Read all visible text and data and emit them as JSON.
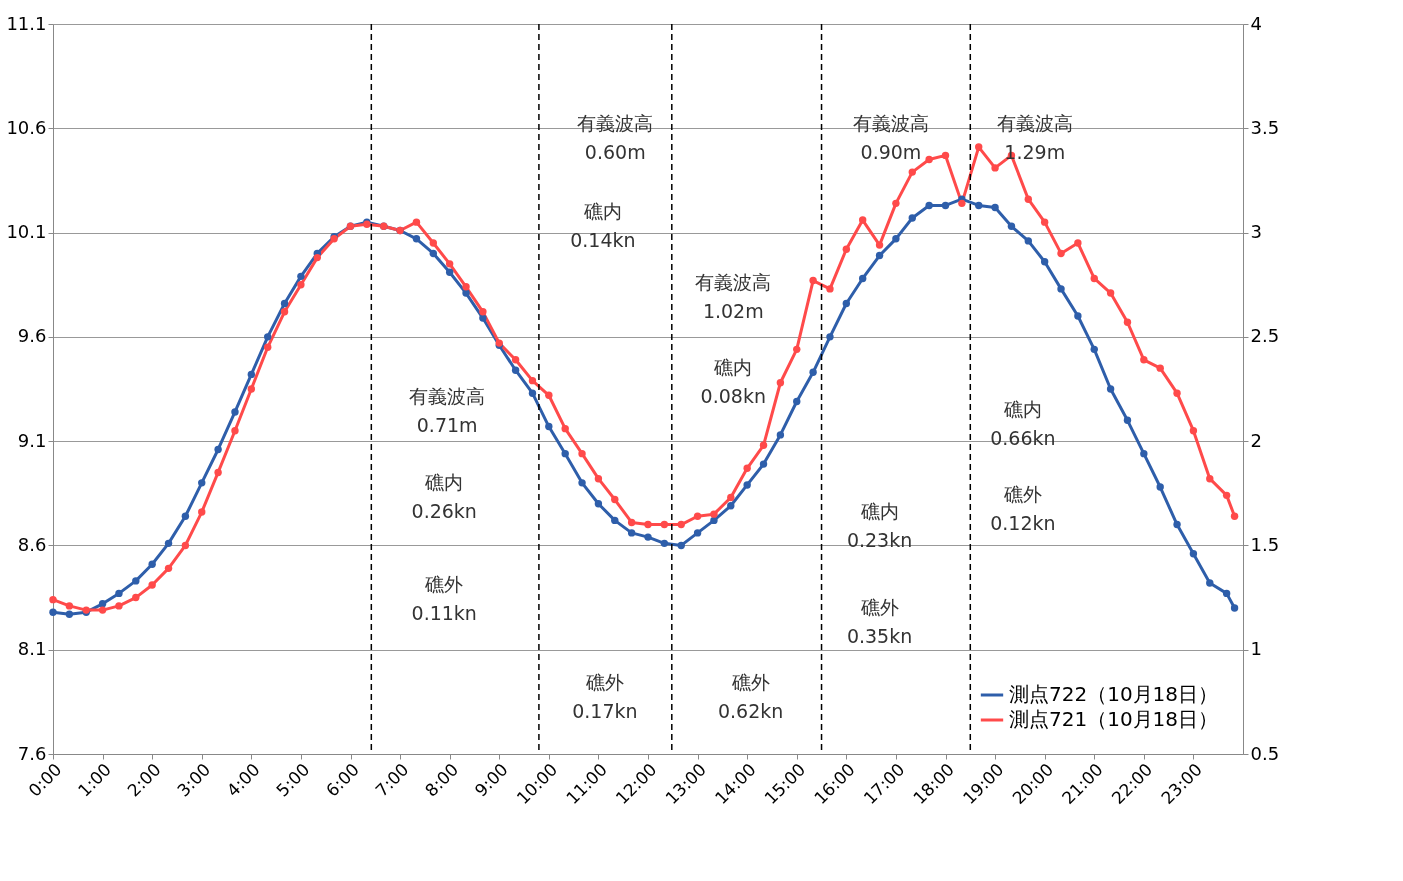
{
  "chart_data": {
    "type": "line",
    "x": [
      0,
      0.33,
      0.67,
      1,
      1.33,
      1.67,
      2,
      2.33,
      2.67,
      3,
      3.33,
      3.67,
      4,
      4.33,
      4.67,
      5,
      5.33,
      5.67,
      6,
      6.33,
      6.67,
      7,
      7.33,
      7.67,
      8,
      8.33,
      8.67,
      9,
      9.33,
      9.67,
      10,
      10.33,
      10.67,
      11,
      11.33,
      11.67,
      12,
      12.33,
      12.67,
      13,
      13.33,
      13.67,
      14,
      14.33,
      14.67,
      15,
      15.33,
      15.67,
      16,
      16.33,
      16.67,
      17,
      17.33,
      17.67,
      18,
      18.33,
      18.67,
      19,
      19.33,
      19.67,
      20,
      20.33,
      20.67,
      21,
      21.33,
      21.67,
      22,
      22.33,
      22.67,
      23,
      23.33,
      23.67,
      23.83
    ],
    "series": [
      {
        "name": "測点722（10月18日）",
        "color": "#2e5eaa",
        "values": [
          8.28,
          8.27,
          8.28,
          8.32,
          8.37,
          8.43,
          8.51,
          8.61,
          8.74,
          8.9,
          9.06,
          9.24,
          9.42,
          9.6,
          9.76,
          9.89,
          10.0,
          10.08,
          10.13,
          10.15,
          10.13,
          10.11,
          10.07,
          10.0,
          9.91,
          9.81,
          9.69,
          9.56,
          9.44,
          9.33,
          9.17,
          9.04,
          8.9,
          8.8,
          8.72,
          8.66,
          8.64,
          8.61,
          8.6,
          8.66,
          8.72,
          8.79,
          8.89,
          8.99,
          9.13,
          9.29,
          9.43,
          9.6,
          9.76,
          9.88,
          9.99,
          10.07,
          10.17,
          10.23,
          10.23,
          10.26,
          10.23,
          10.22,
          10.13,
          10.06,
          9.96,
          9.83,
          9.7,
          9.54,
          9.35,
          9.2,
          9.04,
          8.88,
          8.7,
          8.56,
          8.42,
          8.37,
          8.3
        ]
      },
      {
        "name": "測点721（10月18日）",
        "color": "#ff4a4a",
        "values": [
          8.34,
          8.31,
          8.29,
          8.29,
          8.31,
          8.35,
          8.41,
          8.49,
          8.6,
          8.76,
          8.95,
          9.15,
          9.35,
          9.55,
          9.72,
          9.85,
          9.98,
          10.07,
          10.13,
          10.14,
          10.13,
          10.11,
          10.15,
          10.05,
          9.95,
          9.84,
          9.72,
          9.57,
          9.49,
          9.39,
          9.32,
          9.16,
          9.04,
          8.92,
          8.82,
          8.71,
          8.7,
          8.7,
          8.7,
          8.74,
          8.75,
          8.83,
          8.97,
          9.08,
          9.38,
          9.54,
          9.87,
          9.83,
          10.02,
          10.16,
          10.04,
          10.24,
          10.39,
          10.45,
          10.47,
          10.24,
          10.51,
          10.41,
          10.47,
          10.26,
          10.15,
          10.0,
          10.05,
          9.88,
          9.81,
          9.67,
          9.49,
          9.45,
          9.33,
          9.15,
          8.92,
          8.84,
          8.74
        ]
      }
    ],
    "xlim": [
      0,
      24
    ],
    "xticks": [
      {
        "value": 0,
        "label": "0:00"
      },
      {
        "value": 1,
        "label": "1:00"
      },
      {
        "value": 2,
        "label": "2:00"
      },
      {
        "value": 3,
        "label": "3:00"
      },
      {
        "value": 4,
        "label": "4:00"
      },
      {
        "value": 5,
        "label": "5:00"
      },
      {
        "value": 6,
        "label": "6:00"
      },
      {
        "value": 7,
        "label": "7:00"
      },
      {
        "value": 8,
        "label": "8:00"
      },
      {
        "value": 9,
        "label": "9:00"
      },
      {
        "value": 10,
        "label": "10:00"
      },
      {
        "value": 11,
        "label": "11:00"
      },
      {
        "value": 12,
        "label": "12:00"
      },
      {
        "value": 13,
        "label": "13:00"
      },
      {
        "value": 14,
        "label": "14:00"
      },
      {
        "value": 15,
        "label": "15:00"
      },
      {
        "value": 16,
        "label": "16:00"
      },
      {
        "value": 17,
        "label": "17:00"
      },
      {
        "value": 18,
        "label": "18:00"
      },
      {
        "value": 19,
        "label": "19:00"
      },
      {
        "value": 20,
        "label": "20:00"
      },
      {
        "value": 21,
        "label": "21:00"
      },
      {
        "value": 22,
        "label": "22:00"
      },
      {
        "value": 23,
        "label": "23:00"
      }
    ],
    "ylim": [
      7.6,
      11.1
    ],
    "yticks": [
      7.6,
      8.1,
      8.6,
      9.1,
      9.6,
      10.1,
      10.6,
      11.1
    ],
    "y2lim": [
      0.5,
      4
    ],
    "y2ticks": [
      0.5,
      1,
      1.5,
      2,
      2.5,
      3,
      3.5,
      4
    ],
    "ref_lines": [
      {
        "axis": "x",
        "value": 6.42,
        "label": null,
        "color": "#000000",
        "line_style": "dashed"
      },
      {
        "axis": "x",
        "value": 9.8,
        "label": null,
        "color": "#000000",
        "line_style": "dashed"
      },
      {
        "axis": "x",
        "value": 12.48,
        "label": null,
        "color": "#000000",
        "line_style": "dashed"
      },
      {
        "axis": "x",
        "value": 15.5,
        "label": null,
        "color": "#000000",
        "line_style": "dashed"
      },
      {
        "axis": "x",
        "value": 18.5,
        "label": null,
        "color": "#000000",
        "line_style": "dashed"
      }
    ],
    "annotations": [
      "有義波高\n0.60m",
      "有義波高\n0.90m",
      "有義波高\n1.29m",
      "礁内\n0.14kn",
      "有義波高\n1.02m",
      "礁内\n0.08kn",
      "有義波高\n0.71m",
      "礁内\n0.26kn",
      "礁外\n0.11kn",
      "礁外\n0.17kn",
      "礁外\n0.62kn",
      "礁内\n0.23kn",
      "礁外\n0.35kn",
      "礁内\n0.66kn",
      "礁外\n0.12kn"
    ],
    "grid": "y",
    "legend": "bottom right",
    "marker": "circle",
    "line_style": "solid"
  }
}
